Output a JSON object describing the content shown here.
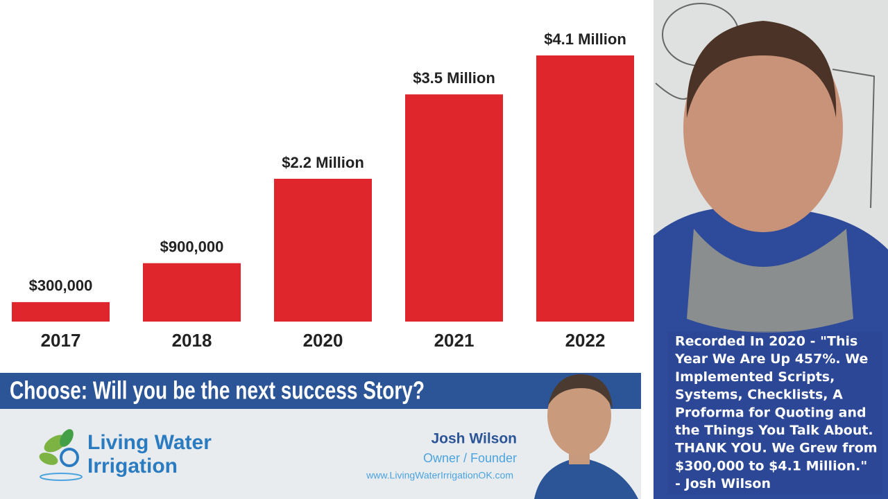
{
  "chart_data": {
    "type": "bar",
    "categories": [
      "2017",
      "2018",
      "2020",
      "2021",
      "2022"
    ],
    "values": [
      300000,
      900000,
      2200000,
      3500000,
      4100000
    ],
    "value_labels": [
      "$300,000",
      "$900,000",
      "$2.2 Million",
      "$3.5 Million",
      "$4.1 Million"
    ],
    "color": "#e0262d"
  },
  "banner": {
    "headline": "Choose: Will you be the next success Story?",
    "logo_line1": "Living Water",
    "logo_line2": "Irrigation",
    "name": "Josh Wilson",
    "role": "Owner / Founder",
    "website": "www.LivingWaterIrrigationOK.com"
  },
  "caption": {
    "lines": [
      "Recorded In 2020 - \"This",
      "Year We Are Up 457%. We",
      "Implemented Scripts,",
      "Systems, Checklists, A",
      "Proforma for Quoting and",
      "the Things You Talk About.",
      "THANK YOU. We Grew from",
      "$300,000 to $4.1 Million.\"",
      "- Josh Wilson"
    ]
  }
}
